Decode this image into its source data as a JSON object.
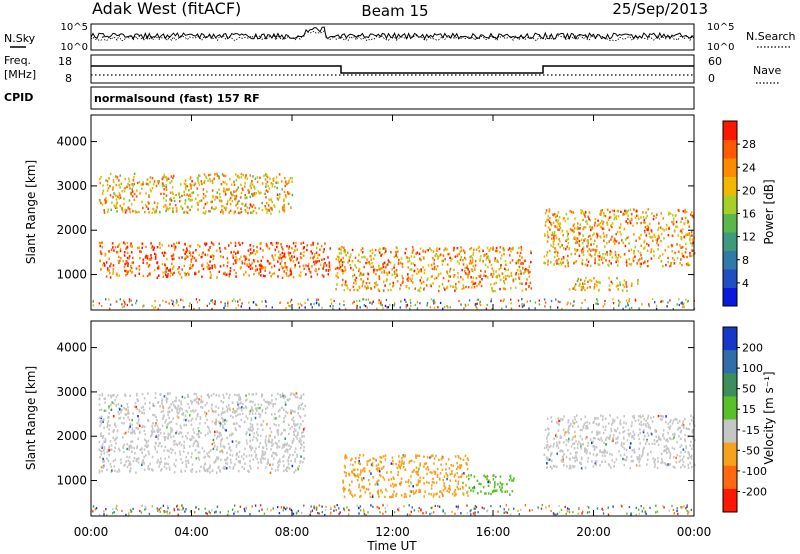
{
  "header": {
    "station": "Adak West (fitACF)",
    "beam": "Beam 15",
    "date": "25/Sep/2013"
  },
  "top_panels": {
    "nsky_label": "N.Sky",
    "nsearch_label": "N.Search",
    "nsky_ticks": [
      "10^5",
      "10^0"
    ],
    "nsearch_ticks": [
      "10^5",
      "10^0"
    ],
    "freq_label": "Freq.",
    "freq_unit": "[MHz]",
    "freq_ticks": [
      "18",
      "8"
    ],
    "nave_label": "Nave",
    "nave_ticks": [
      "60",
      "0"
    ],
    "cpid_label": "CPID",
    "cpid_text": "normalsound (fast) 157 RF"
  },
  "time_axis": {
    "label": "Time UT",
    "ticks": [
      "00:00",
      "04:00",
      "08:00",
      "12:00",
      "16:00",
      "20:00",
      "00:00"
    ]
  },
  "chart_data": [
    {
      "type": "heatmap",
      "name": "power",
      "ylabel": "Slant Range [km]",
      "yticks": [
        "1000",
        "2000",
        "3000",
        "4000"
      ],
      "ylim": [
        200,
        4600
      ],
      "xlim_hours": [
        0,
        24
      ],
      "colorbar": {
        "label": "Power [dB]",
        "ticks": [
          "4",
          "8",
          "12",
          "16",
          "20",
          "24",
          "28"
        ],
        "colors": [
          "#0a18e0",
          "#1f4fc2",
          "#2f7aa8",
          "#3f9a7c",
          "#5ab84a",
          "#a6cf2a",
          "#f0b800",
          "#ff8c00",
          "#ff5a00",
          "#ff1800"
        ]
      },
      "regions": [
        {
          "t0": 0.3,
          "t1": 9.5,
          "r0": 950,
          "r1": 1750,
          "level": 0.9
        },
        {
          "t0": 0.3,
          "t1": 8.0,
          "r0": 2400,
          "r1": 3300,
          "level": 0.7
        },
        {
          "t0": 9.7,
          "t1": 17.5,
          "r0": 650,
          "r1": 1650,
          "level": 0.75
        },
        {
          "t0": 18.0,
          "t1": 24.0,
          "r0": 1200,
          "r1": 2500,
          "level": 0.75
        },
        {
          "t0": 19.0,
          "t1": 21.8,
          "r0": 650,
          "r1": 950,
          "level": 0.7
        }
      ]
    },
    {
      "type": "heatmap",
      "name": "velocity",
      "ylabel": "Slant Range [km]",
      "yticks": [
        "1000",
        "2000",
        "3000",
        "4000"
      ],
      "ylim": [
        200,
        4600
      ],
      "xlim_hours": [
        0,
        24
      ],
      "colorbar": {
        "label": "Velocity [m s⁻¹]",
        "ticks": [
          "200",
          "100",
          "50",
          "15",
          "-15",
          "-50",
          "-100",
          "-200"
        ],
        "colors": [
          "#1538c8",
          "#2f6ea8",
          "#3c8f5a",
          "#58c02a",
          "#c6c6c6",
          "#f7a21a",
          "#ff6a10",
          "#ff1800"
        ]
      },
      "regions": [
        {
          "t0": 0.3,
          "t1": 8.5,
          "r0": 1200,
          "r1": 3000,
          "color": "#c6c6c6"
        },
        {
          "t0": 10.0,
          "t1": 15.0,
          "r0": 650,
          "r1": 1600,
          "color": "#f7a21a"
        },
        {
          "t0": 15.0,
          "t1": 16.8,
          "r0": 700,
          "r1": 1150,
          "color": "#58c02a"
        },
        {
          "t0": 18.0,
          "t1": 24.0,
          "r0": 1300,
          "r1": 2500,
          "color": "#c6c6c6"
        }
      ]
    }
  ]
}
